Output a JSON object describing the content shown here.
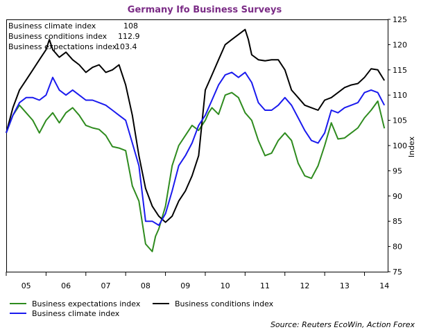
{
  "chart_data": {
    "type": "line",
    "title": "Germany Ifo Business Surveys",
    "ylabel": "Index",
    "ylim": [
      75,
      125
    ],
    "yticks": [
      75,
      80,
      85,
      90,
      95,
      100,
      105,
      110,
      115,
      120,
      125
    ],
    "xlim": [
      2005.0,
      2014.583
    ],
    "xtick_labels": [
      "05",
      "06",
      "07",
      "08",
      "09",
      "10",
      "11",
      "12",
      "13",
      "14"
    ],
    "annotations": [
      {
        "label": "Business climate index",
        "value": "108"
      },
      {
        "label": "Business conditions index",
        "value": "112.9"
      },
      {
        "label": "Business expectations index",
        "value": "103.4"
      }
    ],
    "legend_position": "bottom",
    "source": "Source: Reuters EcoWin, Action Forex",
    "series": [
      {
        "name": "Business expectations index",
        "color": "#2e8b1e",
        "x": [
          2005.0,
          2005.167,
          2005.333,
          2005.5,
          2005.667,
          2005.833,
          2006.0,
          2006.167,
          2006.333,
          2006.5,
          2006.667,
          2006.833,
          2007.0,
          2007.167,
          2007.333,
          2007.5,
          2007.667,
          2007.833,
          2008.0,
          2008.167,
          2008.333,
          2008.5,
          2008.667,
          2008.75,
          2008.833,
          2009.0,
          2009.167,
          2009.333,
          2009.5,
          2009.667,
          2009.833,
          2010.0,
          2010.083,
          2010.167,
          2010.333,
          2010.5,
          2010.667,
          2010.833,
          2011.0,
          2011.167,
          2011.333,
          2011.5,
          2011.667,
          2011.833,
          2012.0,
          2012.167,
          2012.333,
          2012.5,
          2012.667,
          2012.833,
          2013.0,
          2013.167,
          2013.333,
          2013.5,
          2013.667,
          2013.833,
          2014.0,
          2014.167,
          2014.333,
          2014.5
        ],
        "y": [
          102.5,
          106,
          108,
          106.5,
          105,
          102.5,
          105,
          106.5,
          104.5,
          106.5,
          107.5,
          106,
          104,
          103.5,
          103.2,
          102,
          99.8,
          99.5,
          99,
          92,
          89,
          80.5,
          79,
          82,
          83.5,
          88,
          96,
          100,
          102,
          104,
          103,
          105,
          106.5,
          107.5,
          106.2,
          110,
          110.5,
          109.5,
          106.5,
          105,
          101,
          98,
          98.5,
          101,
          102.5,
          101,
          96.5,
          94,
          93.5,
          96,
          100,
          104.5,
          101.3,
          101.5,
          102.5,
          103.5,
          105.5,
          107,
          108.8,
          103.4
        ]
      },
      {
        "name": "Business conditions index",
        "color": "#000000",
        "x": [
          2005.0,
          2005.167,
          2005.333,
          2005.5,
          2005.667,
          2005.833,
          2006.0,
          2006.083,
          2006.167,
          2006.333,
          2006.5,
          2006.667,
          2006.833,
          2007.0,
          2007.167,
          2007.333,
          2007.5,
          2007.667,
          2007.833,
          2008.0,
          2008.167,
          2008.333,
          2008.5,
          2008.667,
          2008.833,
          2009.0,
          2009.167,
          2009.333,
          2009.5,
          2009.667,
          2009.833,
          2010.0,
          2010.167,
          2010.333,
          2010.5,
          2010.667,
          2010.833,
          2011.0,
          2011.083,
          2011.167,
          2011.333,
          2011.5,
          2011.667,
          2011.833,
          2012.0,
          2012.167,
          2012.333,
          2012.5,
          2012.667,
          2012.833,
          2013.0,
          2013.167,
          2013.333,
          2013.5,
          2013.667,
          2013.833,
          2014.0,
          2014.167,
          2014.333,
          2014.5
        ],
        "y": [
          102.5,
          107.5,
          111,
          113,
          115,
          117,
          119,
          121,
          119,
          117.5,
          118.5,
          117,
          116,
          114.5,
          115.5,
          116,
          114.5,
          115,
          116,
          112,
          106,
          98,
          91.5,
          88,
          86,
          84.8,
          86,
          89,
          91,
          94,
          98,
          111,
          114,
          117,
          120,
          121,
          122,
          123,
          121,
          118,
          117,
          116.8,
          117,
          117,
          115,
          111,
          109.5,
          108,
          107.5,
          107,
          109,
          109.5,
          110.5,
          111.5,
          112,
          112.3,
          113.5,
          115.2,
          115,
          112.9
        ]
      },
      {
        "name": "Business climate index",
        "color": "#1a1aee",
        "x": [
          2005.0,
          2005.167,
          2005.333,
          2005.5,
          2005.667,
          2005.833,
          2006.0,
          2006.167,
          2006.333,
          2006.5,
          2006.667,
          2006.833,
          2007.0,
          2007.167,
          2007.333,
          2007.5,
          2007.667,
          2007.833,
          2008.0,
          2008.167,
          2008.333,
          2008.5,
          2008.667,
          2008.833,
          2009.0,
          2009.167,
          2009.333,
          2009.5,
          2009.667,
          2009.833,
          2010.0,
          2010.167,
          2010.333,
          2010.5,
          2010.667,
          2010.833,
          2011.0,
          2011.167,
          2011.333,
          2011.5,
          2011.667,
          2011.833,
          2012.0,
          2012.167,
          2012.333,
          2012.5,
          2012.667,
          2012.833,
          2013.0,
          2013.167,
          2013.333,
          2013.5,
          2013.667,
          2013.833,
          2014.0,
          2014.167,
          2014.333,
          2014.5
        ],
        "y": [
          102.5,
          106,
          108.5,
          109.5,
          109.5,
          109,
          110,
          113.5,
          111,
          110,
          111,
          110,
          109,
          109,
          108.5,
          108,
          107,
          106,
          105,
          100.5,
          96,
          85,
          85,
          84.2,
          86.5,
          91,
          96,
          98,
          100.5,
          104,
          106,
          109,
          112,
          114,
          114.5,
          113.5,
          114.5,
          112.5,
          108.5,
          107,
          107,
          108,
          109.5,
          108,
          105.5,
          103,
          101,
          100.5,
          102.5,
          107,
          106.5,
          107.5,
          108,
          108.5,
          110.5,
          111,
          110.5,
          108
        ]
      }
    ]
  }
}
